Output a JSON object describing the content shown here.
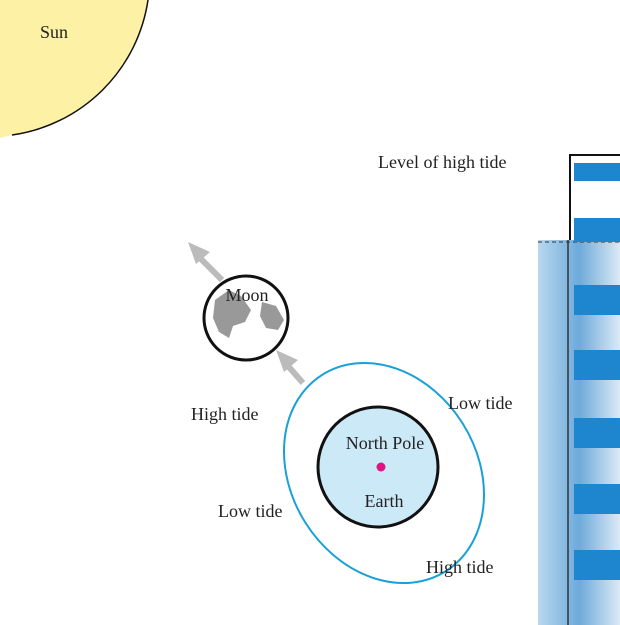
{
  "labels": {
    "sun": "Sun",
    "level": "Level of high tide",
    "moon": "Moon",
    "high_tide_1": "High tide",
    "low_tide_1": "Low tide",
    "north_pole": "North Pole",
    "earth": "Earth",
    "low_tide_2": "Low tide",
    "high_tide_2": "High tide"
  }
}
